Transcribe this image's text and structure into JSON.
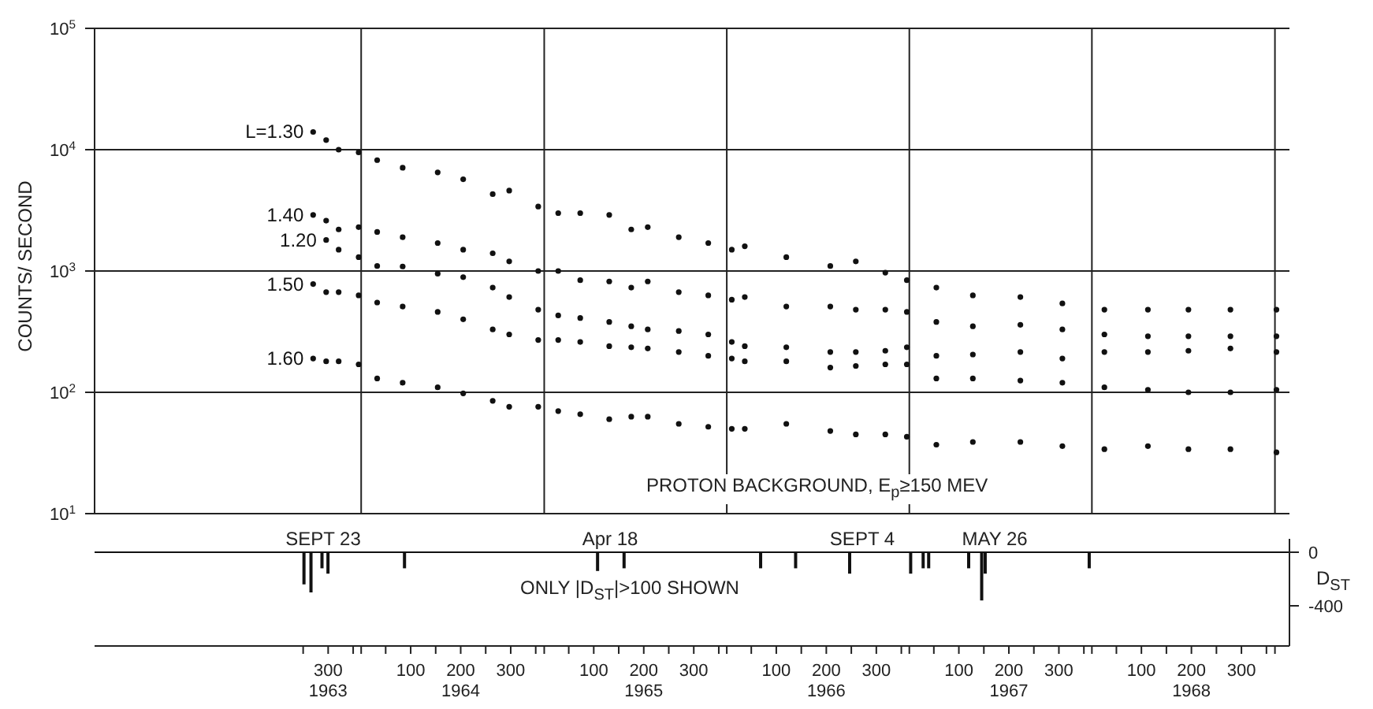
{
  "chart_data": [
    {
      "type": "scatter",
      "ylabel": "COUNTS/ SECOND",
      "log": "y",
      "grid": "y",
      "marker": "circle",
      "tick_labels": "y",
      "xlim": [
        "1962-07-17",
        "1969-01-30"
      ],
      "ylim": [
        10,
        100000
      ],
      "yticks": [
        {
          "value": 10,
          "label": "10$^{1}$"
        },
        {
          "value": 100,
          "label": "10$^{2}$"
        },
        {
          "value": 1000,
          "label": "10$^{3}$"
        },
        {
          "value": 10000,
          "label": "10$^{4}$"
        },
        {
          "value": 100000,
          "label": "10$^{5}$"
        }
      ],
      "ref_lines": [
        {
          "axis": "x",
          "value": "1964-01-01",
          "color": "#222222"
        },
        {
          "axis": "x",
          "value": "1965-01-01",
          "color": "#222222"
        },
        {
          "axis": "x",
          "value": "1966-01-01",
          "color": "#222222"
        },
        {
          "axis": "x",
          "value": "1967-01-01",
          "color": "#222222"
        },
        {
          "axis": "x",
          "value": "1968-01-01",
          "color": "#222222"
        },
        {
          "axis": "x",
          "value": "1969-01-01",
          "color": "#222222"
        }
      ],
      "x": [
        "1963-09-27",
        "1963-10-23",
        "1963-11-17",
        "1963-12-27",
        "1964-02-02",
        "1964-03-24",
        "1964-06-02",
        "1964-07-23",
        "1964-09-20",
        "1964-10-23",
        "1964-12-20",
        "1965-01-29",
        "1965-03-14",
        "1965-05-11",
        "1965-06-24",
        "1965-07-27",
        "1965-09-27",
        "1965-11-25",
        "1966-01-11",
        "1966-02-06",
        "1966-04-30",
        "1966-07-27",
        "1966-09-16",
        "1966-11-14",
        "1966-12-27",
        "1967-02-24",
        "1967-05-08",
        "1967-08-11",
        "1967-11-03",
        "1968-01-26",
        "1968-04-22",
        "1968-07-12",
        "1968-10-04",
        "1969-01-04"
      ],
      "series": [
        {
          "name": "L=1.30",
          "color": "#111111",
          "values": [
            14000,
            12000,
            10000,
            9500,
            8200,
            7100,
            6500,
            5700,
            4300,
            4600,
            3400,
            3000,
            3000,
            2900,
            2200,
            2300,
            1900,
            1700,
            1500,
            1600,
            1300,
            1100,
            1200,
            970,
            840,
            730,
            630,
            610,
            540,
            480,
            480,
            480,
            480,
            480
          ]
        },
        {
          "name": "1.40",
          "color": "#111111",
          "values": [
            2900,
            2600,
            2200,
            2300,
            2100,
            1900,
            1700,
            1500,
            1400,
            1200,
            1000,
            1000,
            840,
            820,
            730,
            820,
            670,
            630,
            580,
            610,
            510,
            510,
            480,
            480,
            460,
            380,
            350,
            360,
            330,
            300,
            290,
            290,
            290,
            290
          ]
        },
        {
          "name": "1.20",
          "color": "#111111",
          "values": [
            null,
            1800,
            1500,
            1300,
            1100,
            1090,
            950,
            890,
            730,
            610,
            480,
            430,
            410,
            380,
            350,
            330,
            320,
            300,
            260,
            240,
            235,
            215,
            215,
            220,
            235,
            200,
            205,
            215,
            190,
            215,
            215,
            220,
            230,
            215
          ]
        },
        {
          "name": "1.50",
          "color": "#111111",
          "values": [
            780,
            670,
            670,
            630,
            550,
            510,
            460,
            400,
            330,
            300,
            270,
            270,
            260,
            240,
            235,
            230,
            215,
            200,
            190,
            180,
            180,
            160,
            165,
            170,
            170,
            130,
            130,
            125,
            120,
            110,
            105,
            100,
            100,
            105
          ]
        },
        {
          "name": "1.60",
          "color": "#111111",
          "values": [
            190,
            180,
            180,
            170,
            130,
            120,
            110,
            98,
            85,
            76,
            76,
            70,
            66,
            60,
            63,
            63,
            55,
            52,
            50,
            50,
            55,
            48,
            45,
            45,
            43,
            37,
            39,
            39,
            36,
            34,
            36,
            34,
            34,
            32
          ]
        }
      ],
      "annotations": [
        "PROTON BACKGROUND, E$_{p}$≥150 MEV"
      ]
    },
    {
      "type": "bar",
      "ylabel": "D$_{ST}$",
      "xlim": [
        "1962-07-17",
        "1969-01-30"
      ],
      "xticks": [
        {
          "value": "1963-09-07",
          "label": null
        },
        {
          "value": "1963-10-27",
          "label": "300\n1963"
        },
        {
          "value": "1963-12-16",
          "label": null
        },
        {
          "value": "1964-01-01",
          "label": null
        },
        {
          "value": "1964-02-19",
          "label": null
        },
        {
          "value": "1964-04-09",
          "label": "100"
        },
        {
          "value": "1964-05-29",
          "label": null
        },
        {
          "value": "1964-07-18",
          "label": "200\n1964"
        },
        {
          "value": "1964-09-06",
          "label": null
        },
        {
          "value": "1964-10-26",
          "label": "300"
        },
        {
          "value": "1964-12-15",
          "label": null
        },
        {
          "value": "1965-01-01",
          "label": null
        },
        {
          "value": "1965-02-19",
          "label": null
        },
        {
          "value": "1965-04-10",
          "label": "100"
        },
        {
          "value": "1965-05-30",
          "label": null
        },
        {
          "value": "1965-07-19",
          "label": "200\n1965"
        },
        {
          "value": "1965-09-07",
          "label": null
        },
        {
          "value": "1965-10-27",
          "label": "300"
        },
        {
          "value": "1965-12-16",
          "label": null
        },
        {
          "value": "1966-01-01",
          "label": null
        },
        {
          "value": "1966-02-19",
          "label": null
        },
        {
          "value": "1966-04-10",
          "label": "100"
        },
        {
          "value": "1966-05-30",
          "label": null
        },
        {
          "value": "1966-07-19",
          "label": "200\n1966"
        },
        {
          "value": "1966-09-07",
          "label": null
        },
        {
          "value": "1966-10-27",
          "label": "300"
        },
        {
          "value": "1966-12-16",
          "label": null
        },
        {
          "value": "1967-01-01",
          "label": null
        },
        {
          "value": "1967-02-19",
          "label": null
        },
        {
          "value": "1967-04-10",
          "label": "100"
        },
        {
          "value": "1967-05-30",
          "label": null
        },
        {
          "value": "1967-07-19",
          "label": "200\n1967"
        },
        {
          "value": "1967-09-07",
          "label": null
        },
        {
          "value": "1967-10-27",
          "label": "300"
        },
        {
          "value": "1967-12-16",
          "label": null
        },
        {
          "value": "1968-01-01",
          "label": null
        },
        {
          "value": "1968-02-19",
          "label": null
        },
        {
          "value": "1968-04-09",
          "label": "100"
        },
        {
          "value": "1968-05-29",
          "label": null
        },
        {
          "value": "1968-07-18",
          "label": "200\n1968"
        },
        {
          "value": "1968-09-06",
          "label": null
        },
        {
          "value": "1968-10-26",
          "label": "300"
        },
        {
          "value": "1968-12-15",
          "label": null
        },
        {
          "value": "1969-01-01",
          "label": null
        }
      ],
      "ylim": [
        -700,
        100
      ],
      "yticks": [
        0,
        -400
      ],
      "x": [
        "1963-09-09",
        "1963-09-23",
        "1963-10-15",
        "1963-10-27",
        "1964-03-28",
        "1965-04-18",
        "1965-06-10",
        "1966-03-10",
        "1966-05-19",
        "1966-09-04",
        "1967-01-04",
        "1967-01-29",
        "1967-02-09",
        "1967-04-30",
        "1967-05-26",
        "1967-06-02",
        "1967-12-27"
      ],
      "series": [
        {
          "color": "#111111",
          "values": [
            -240,
            -300,
            -120,
            -160,
            -120,
            -140,
            -120,
            -120,
            -120,
            -160,
            -160,
            -120,
            -120,
            -120,
            -360,
            -160,
            -120
          ]
        }
      ],
      "ref_lines": [
        {
          "axis": "y",
          "value": 0,
          "color": "#111111"
        }
      ],
      "annotations": [
        "SEPT 23",
        "Apr 18",
        "SEPT 4",
        "MAY 26",
        "ONLY |D$_{ST}$|>100 SHOWN"
      ]
    }
  ]
}
